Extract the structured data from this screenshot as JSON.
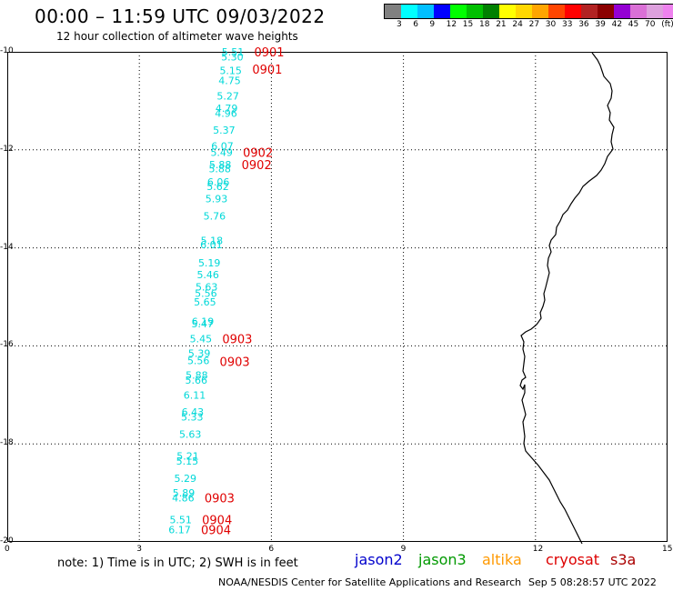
{
  "header": {
    "title": "00:00 – 11:59 UTC 09/03/2022",
    "subtitle": "12 hour collection of altimeter wave heights"
  },
  "legend": {
    "colors": [
      "#808080",
      "#00ffff",
      "#00bfff",
      "#0000ff",
      "#00ff00",
      "#00c000",
      "#008000",
      "#ffff00",
      "#ffd700",
      "#ffa500",
      "#ff4500",
      "#ff0000",
      "#b22222",
      "#8b0000",
      "#9400d3",
      "#da70d6",
      "#dda0dd",
      "#ee82ee",
      "#000000"
    ],
    "labels": [
      "3",
      "6",
      "9",
      "12",
      "15",
      "18",
      "21",
      "24",
      "27",
      "30",
      "33",
      "36",
      "39",
      "42",
      "45",
      "70",
      "(ft)"
    ]
  },
  "axes": {
    "y_labels": [
      "-10",
      "-12",
      "-14",
      "-16",
      "-18",
      "-20"
    ],
    "x_labels": [
      "0",
      "3",
      "6",
      "9",
      "12",
      "15"
    ]
  },
  "wave_heights": [
    {
      "text": "5.51",
      "lat": -10.0
    },
    {
      "text": "5.30",
      "lat": -10.1
    },
    {
      "text": "5.15",
      "lat": -10.38
    },
    {
      "text": "4.75",
      "lat": -10.58
    },
    {
      "text": "5.27",
      "lat": -10.9
    },
    {
      "text": "4.79",
      "lat": -11.15
    },
    {
      "text": "4.96",
      "lat": -11.25
    },
    {
      "text": "5.37",
      "lat": -11.6
    },
    {
      "text": "6.07",
      "lat": -11.92
    },
    {
      "text": "5.49",
      "lat": -12.05
    },
    {
      "text": "5.88",
      "lat": -12.3
    },
    {
      "text": "5.88",
      "lat": -12.38
    },
    {
      "text": "6.06",
      "lat": -12.65
    },
    {
      "text": "5.62",
      "lat": -12.75
    },
    {
      "text": "5.93",
      "lat": -13.0
    },
    {
      "text": "5.76",
      "lat": -13.35
    },
    {
      "text": "5.18",
      "lat": -13.85
    },
    {
      "text": "6.01",
      "lat": -13.93
    },
    {
      "text": "5.19",
      "lat": -14.3
    },
    {
      "text": "5.46",
      "lat": -14.55
    },
    {
      "text": "5.63",
      "lat": -14.8
    },
    {
      "text": "5.56",
      "lat": -14.93
    },
    {
      "text": "5.65",
      "lat": -15.1
    },
    {
      "text": "6.19",
      "lat": -15.5
    },
    {
      "text": "5.47",
      "lat": -15.55
    },
    {
      "text": "5.45",
      "lat": -15.85
    },
    {
      "text": "5.39",
      "lat": -16.15
    },
    {
      "text": "5.56",
      "lat": -16.3
    },
    {
      "text": "5.88",
      "lat": -16.6
    },
    {
      "text": "5.66",
      "lat": -16.7
    },
    {
      "text": "6.11",
      "lat": -17.0
    },
    {
      "text": "6.43",
      "lat": -17.35
    },
    {
      "text": "5.33",
      "lat": -17.45
    },
    {
      "text": "5.63",
      "lat": -17.8
    },
    {
      "text": "5.21",
      "lat": -18.25
    },
    {
      "text": "5.15",
      "lat": -18.35
    },
    {
      "text": "5.29",
      "lat": -18.7
    },
    {
      "text": "5.89",
      "lat": -19.0
    },
    {
      "text": "4.86",
      "lat": -19.1
    },
    {
      "text": "5.51",
      "lat": -19.55
    },
    {
      "text": "6.17",
      "lat": -19.75
    }
  ],
  "pass_labels": [
    {
      "text": "0901",
      "lat": -10.0
    },
    {
      "text": "0901",
      "lat": -10.35
    },
    {
      "text": "0902",
      "lat": -12.05
    },
    {
      "text": "0902",
      "lat": -12.3
    },
    {
      "text": "0903",
      "lat": -15.85
    },
    {
      "text": "0903",
      "lat": -16.32
    },
    {
      "text": "0903",
      "lat": -19.1
    },
    {
      "text": "0904",
      "lat": -19.55
    },
    {
      "text": "0904",
      "lat": -19.75
    }
  ],
  "footer": {
    "note": "note: 1) Time is in UTC; 2) SWH is in feet",
    "satellites": [
      {
        "name": "jason2",
        "color": "#0000cc"
      },
      {
        "name": "jason3",
        "color": "#009900"
      },
      {
        "name": "altika",
        "color": "#ff9900"
      },
      {
        "name": "cryosat",
        "color": "#dd0000"
      },
      {
        "name": "s3a",
        "color": "#aa0000"
      }
    ],
    "credit": "NOAA/NESDIS Center for Satellite Applications and Research",
    "timestamp": "Sep  5 08:28:57 UTC 2022"
  },
  "colors": {
    "wave_text": "#00d8d8",
    "pass_text": "#e00000"
  }
}
